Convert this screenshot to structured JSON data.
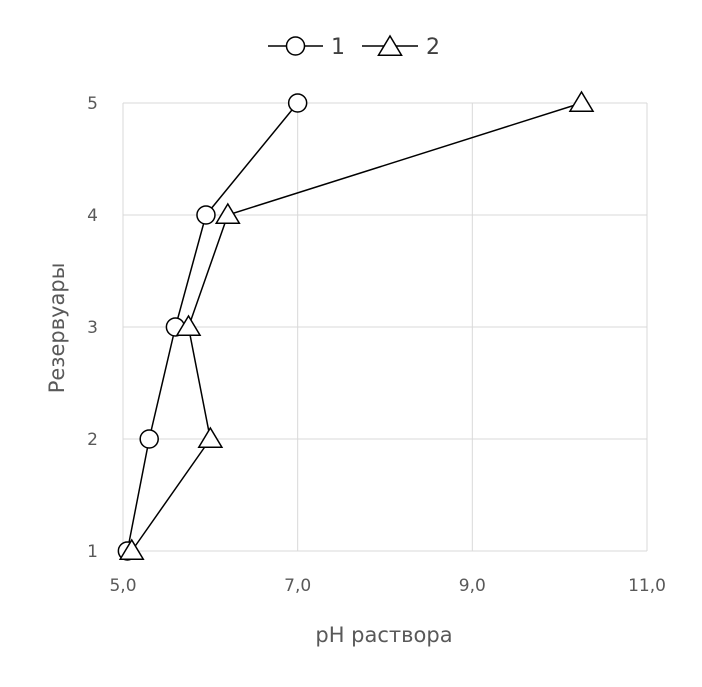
{
  "chart_data": {
    "type": "line",
    "xlabel": "pH раствора",
    "ylabel": "Резервуары",
    "xlim": [
      5,
      11
    ],
    "ylim": [
      1,
      5
    ],
    "x_ticks": [
      5,
      7,
      9,
      11
    ],
    "x_tick_labels": [
      "5,0",
      "7,0",
      "9,0",
      "11,0"
    ],
    "y_ticks": [
      1,
      2,
      3,
      4,
      5
    ],
    "y_tick_labels": [
      "1",
      "2",
      "3",
      "4",
      "5"
    ],
    "grid": true,
    "legend_position": "top",
    "series": [
      {
        "name": "1",
        "marker": "circle",
        "points": [
          {
            "x": 5.05,
            "y": 1
          },
          {
            "x": 5.3,
            "y": 2
          },
          {
            "x": 5.6,
            "y": 3
          },
          {
            "x": 5.95,
            "y": 4
          },
          {
            "x": 7.0,
            "y": 5
          }
        ]
      },
      {
        "name": "2",
        "marker": "triangle",
        "points": [
          {
            "x": 5.1,
            "y": 1
          },
          {
            "x": 6.0,
            "y": 2
          },
          {
            "x": 5.75,
            "y": 3
          },
          {
            "x": 6.2,
            "y": 4
          },
          {
            "x": 10.25,
            "y": 5
          }
        ]
      }
    ],
    "colors": {
      "line": "#000000",
      "marker_fill": "#ffffff",
      "grid": "#d9d9d9",
      "text": "#595959"
    }
  }
}
